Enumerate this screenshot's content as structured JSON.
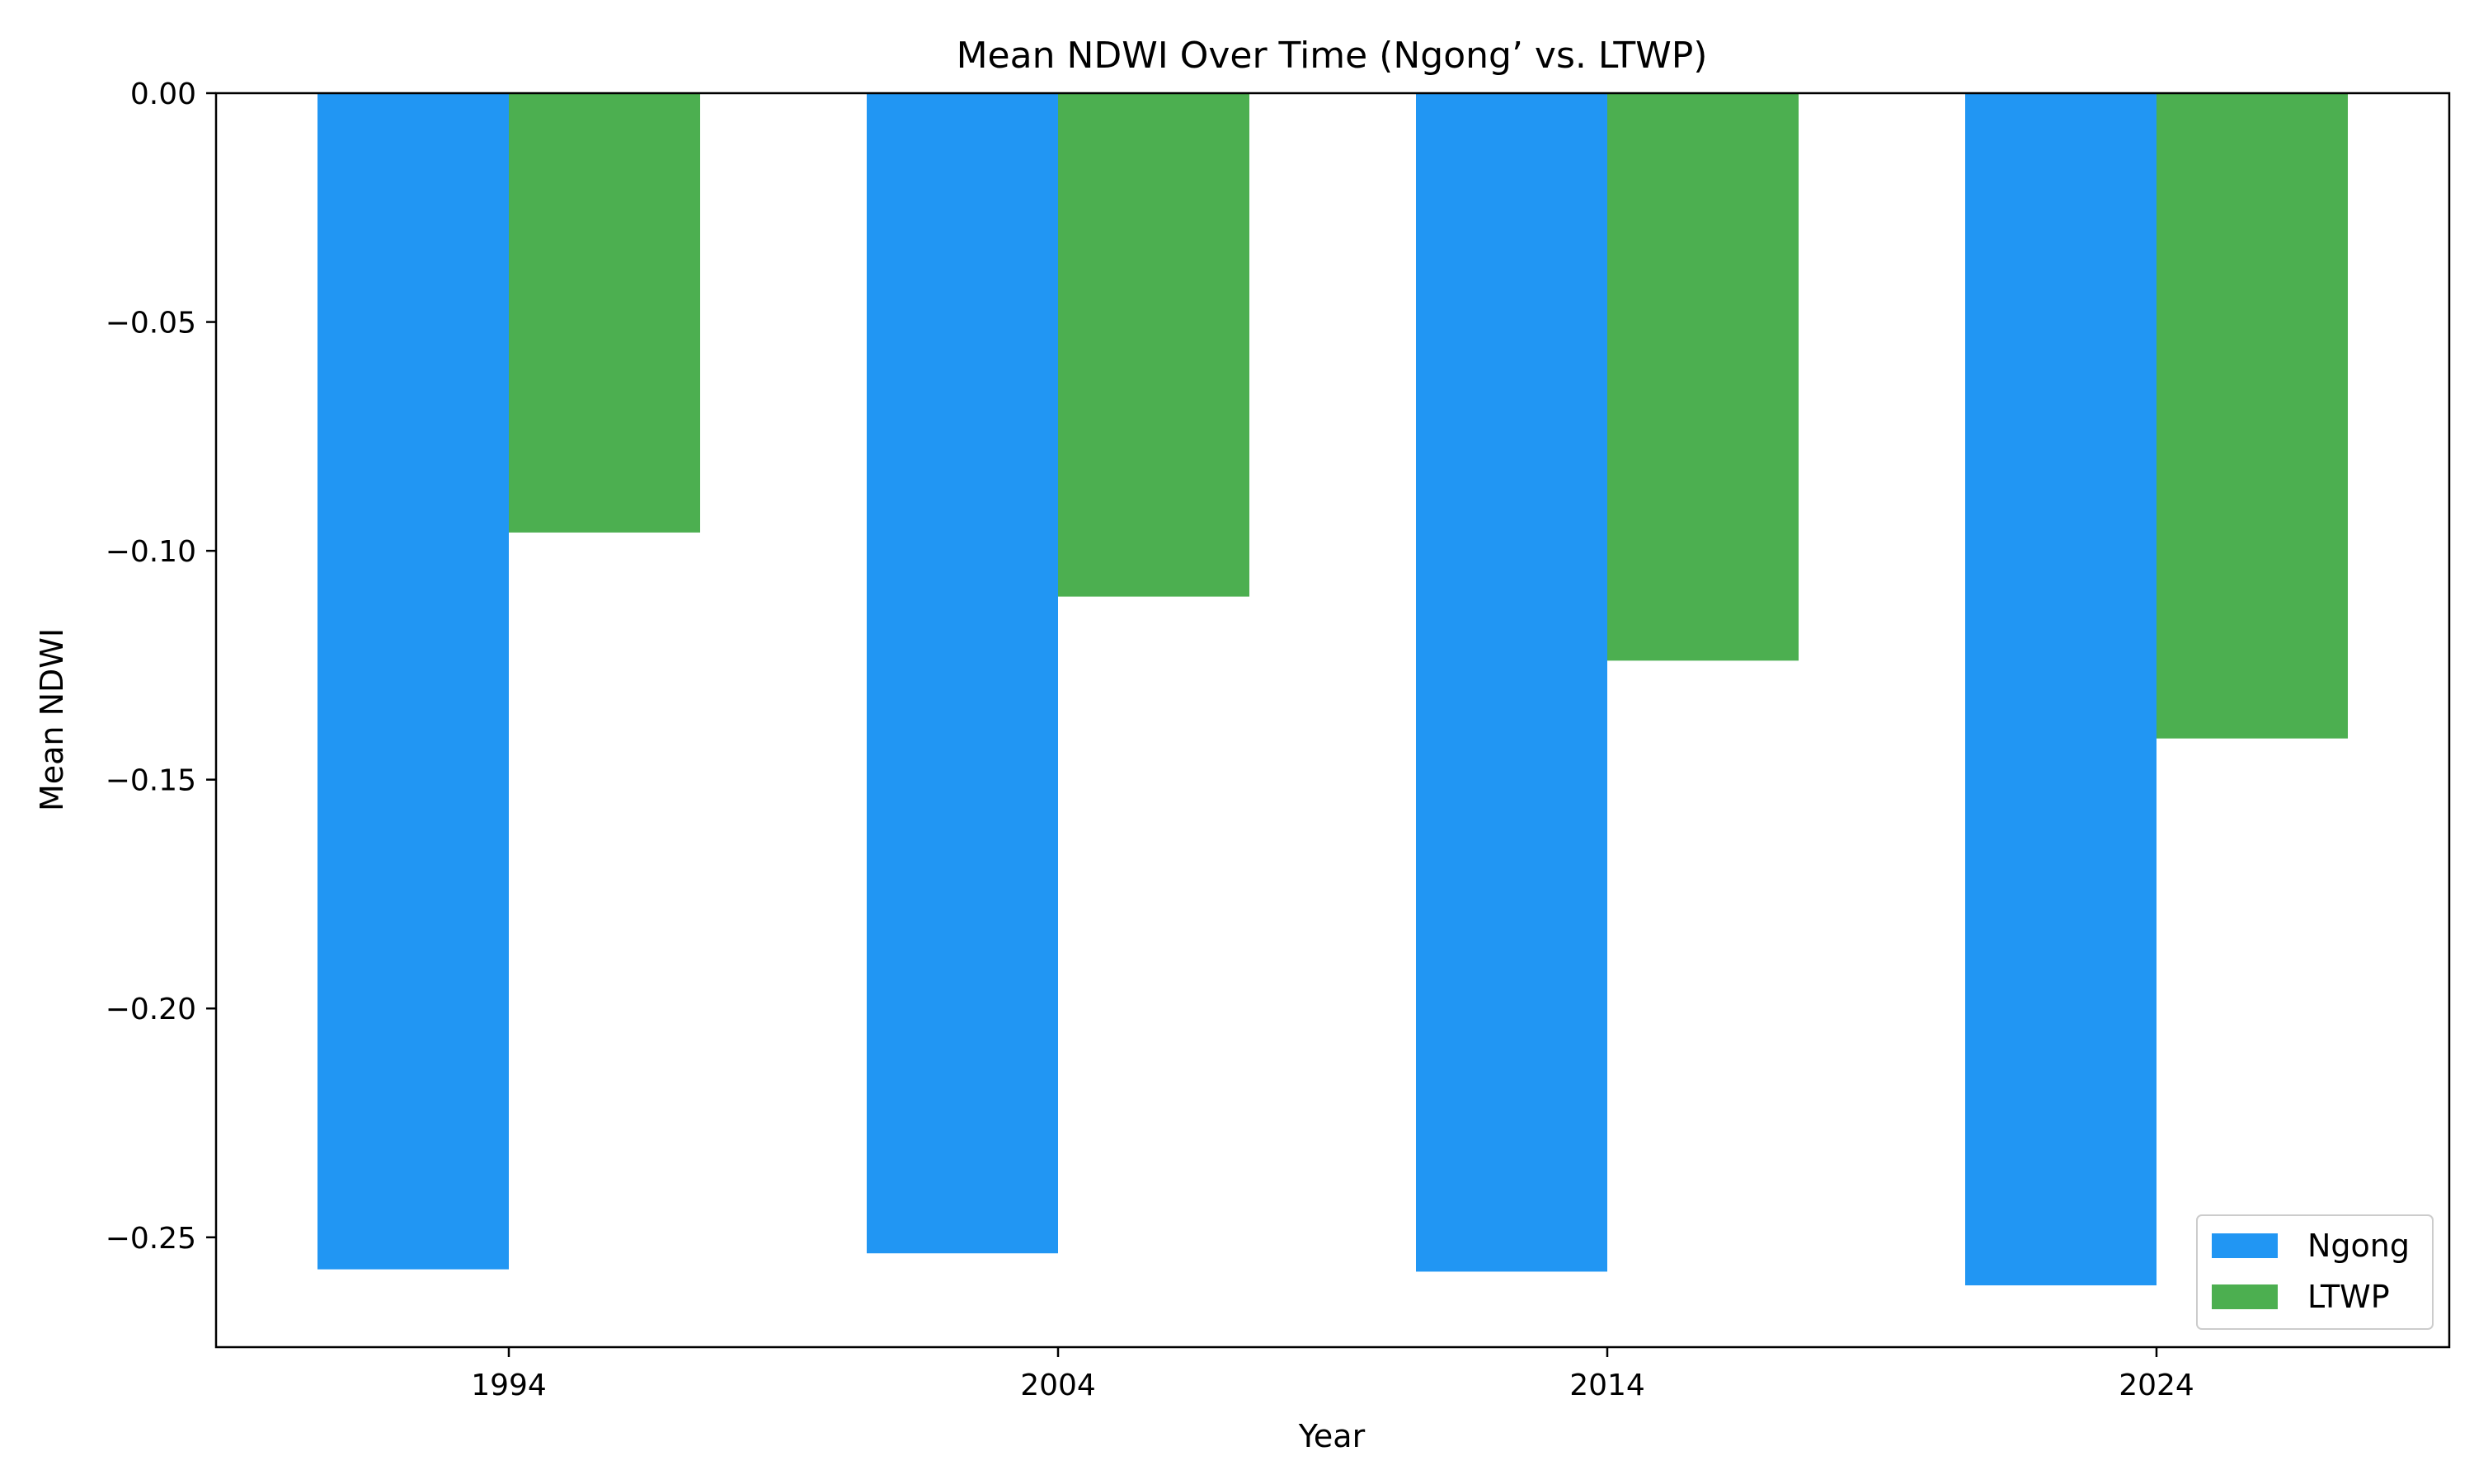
{
  "chart_data": {
    "type": "bar",
    "title": "Mean NDWI Over Time (Ngong’ vs. LTWP)",
    "xlabel": "Year",
    "ylabel": "Mean NDWI",
    "categories": [
      "1994",
      "2004",
      "2014",
      "2024"
    ],
    "series": [
      {
        "name": "Ngong",
        "color": "#2196F3",
        "values": [
          -0.257,
          -0.2535,
          -0.2575,
          -0.2605
        ]
      },
      {
        "name": "LTWP",
        "color": "#4CAF50",
        "values": [
          -0.096,
          -0.11,
          -0.124,
          -0.141
        ]
      }
    ],
    "ylim": [
      -0.274,
      0.0
    ],
    "yticks": [
      0.0,
      -0.05,
      -0.1,
      -0.15,
      -0.2,
      -0.25
    ],
    "ytick_labels": [
      "0.00",
      "−0.05",
      "−0.10",
      "−0.15",
      "−0.20",
      "−0.25"
    ],
    "grid": false,
    "legend_position": "bottom-right"
  }
}
